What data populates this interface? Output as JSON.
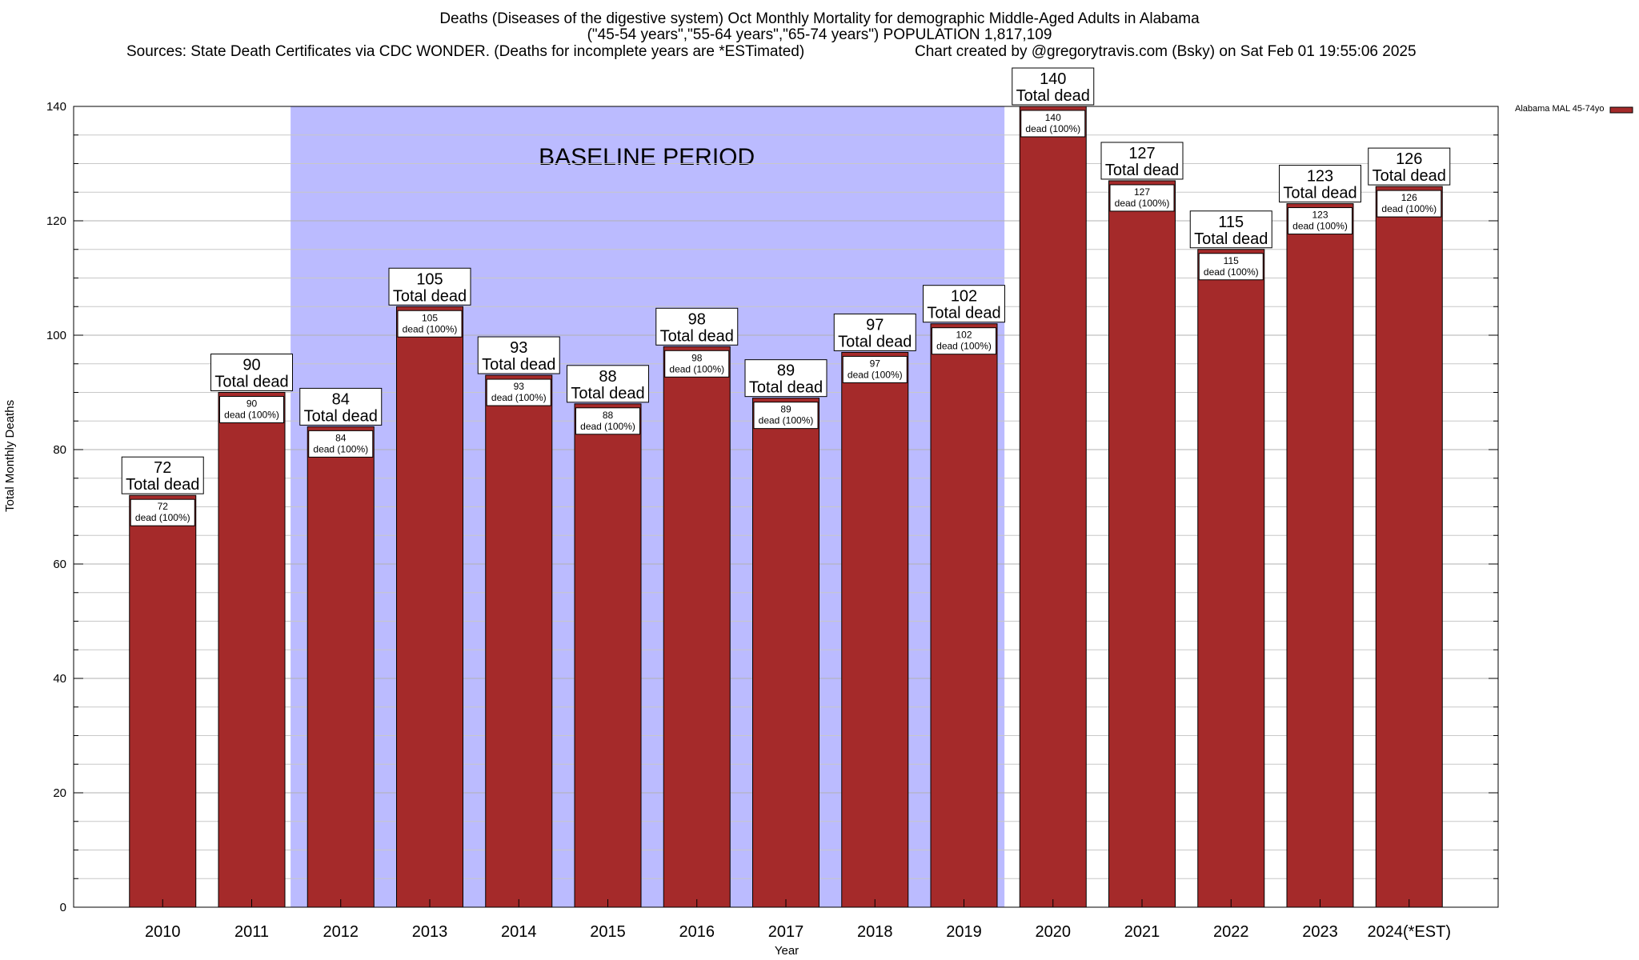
{
  "chart_data": {
    "type": "bar",
    "title": "Deaths (Diseases of the digestive system) Oct Monthly Mortality for demographic Middle-Aged Adults in Alabama",
    "subtitle": "(\"45-54 years\",\"55-64 years\",\"65-74 years\") POPULATION 1,817,109",
    "sources": "Sources: State Death Certificates via CDC WONDER. (Deaths for incomplete years are *ESTimated)",
    "credit": "Chart created by @gregorytravis.com (Bsky) on Sat Feb 01 19:55:06 2025",
    "xlabel": "Year",
    "ylabel": "Total Monthly Deaths",
    "ylim": [
      0,
      140
    ],
    "yticks": [
      0,
      20,
      40,
      60,
      80,
      100,
      120,
      140
    ],
    "minor_tick_step": 5,
    "categories": [
      "2010",
      "2011",
      "2012",
      "2013",
      "2014",
      "2015",
      "2016",
      "2017",
      "2018",
      "2019",
      "2020",
      "2021",
      "2022",
      "2023",
      "2024(*EST)"
    ],
    "series": [
      {
        "name": "Alabama MAL 45-74yo",
        "color": "#a52a2a",
        "values": [
          72,
          90,
          84,
          105,
          93,
          88,
          98,
          89,
          97,
          102,
          140,
          127,
          115,
          123,
          126
        ]
      }
    ],
    "top_label_suffix": "Total dead",
    "inner_label_suffix": "dead (100%)",
    "baseline": {
      "label": "BASELINE PERIOD",
      "start": "2012",
      "end": "2019",
      "color": "#bbbbff"
    },
    "legend": {
      "entry": "Alabama MAL 45-74yo",
      "position": "top-right"
    },
    "grid": true
  }
}
